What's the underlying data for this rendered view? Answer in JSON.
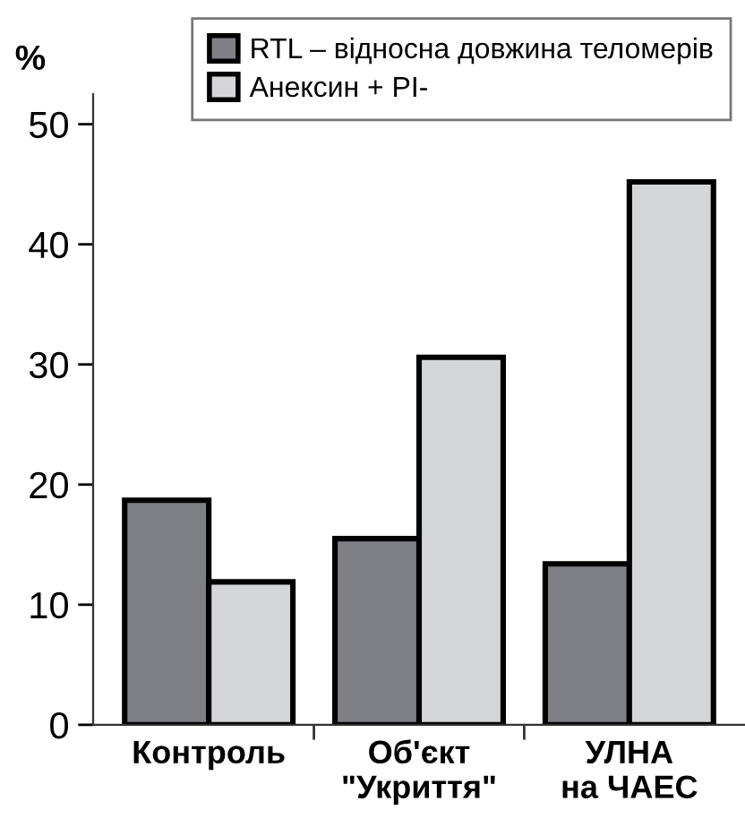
{
  "chart_data": {
    "type": "bar",
    "ylabel": "%",
    "categories": [
      "Контроль",
      "Об'єкт\n\"Укриття\"",
      "УЛНА\nна ЧАЕС"
    ],
    "series": [
      {
        "name": "RTL – відносна довжина теломерів",
        "color": "#7f8085",
        "values": [
          18.7,
          15.5,
          13.4
        ]
      },
      {
        "name": "Анексин + PI-",
        "color": "#d4d5d7",
        "values": [
          11.9,
          30.6,
          45.2
        ]
      }
    ],
    "ylim": [
      0,
      52.5
    ],
    "yticks": [
      0,
      10,
      20,
      30,
      40,
      50
    ],
    "grid": false,
    "legend": "top right"
  }
}
